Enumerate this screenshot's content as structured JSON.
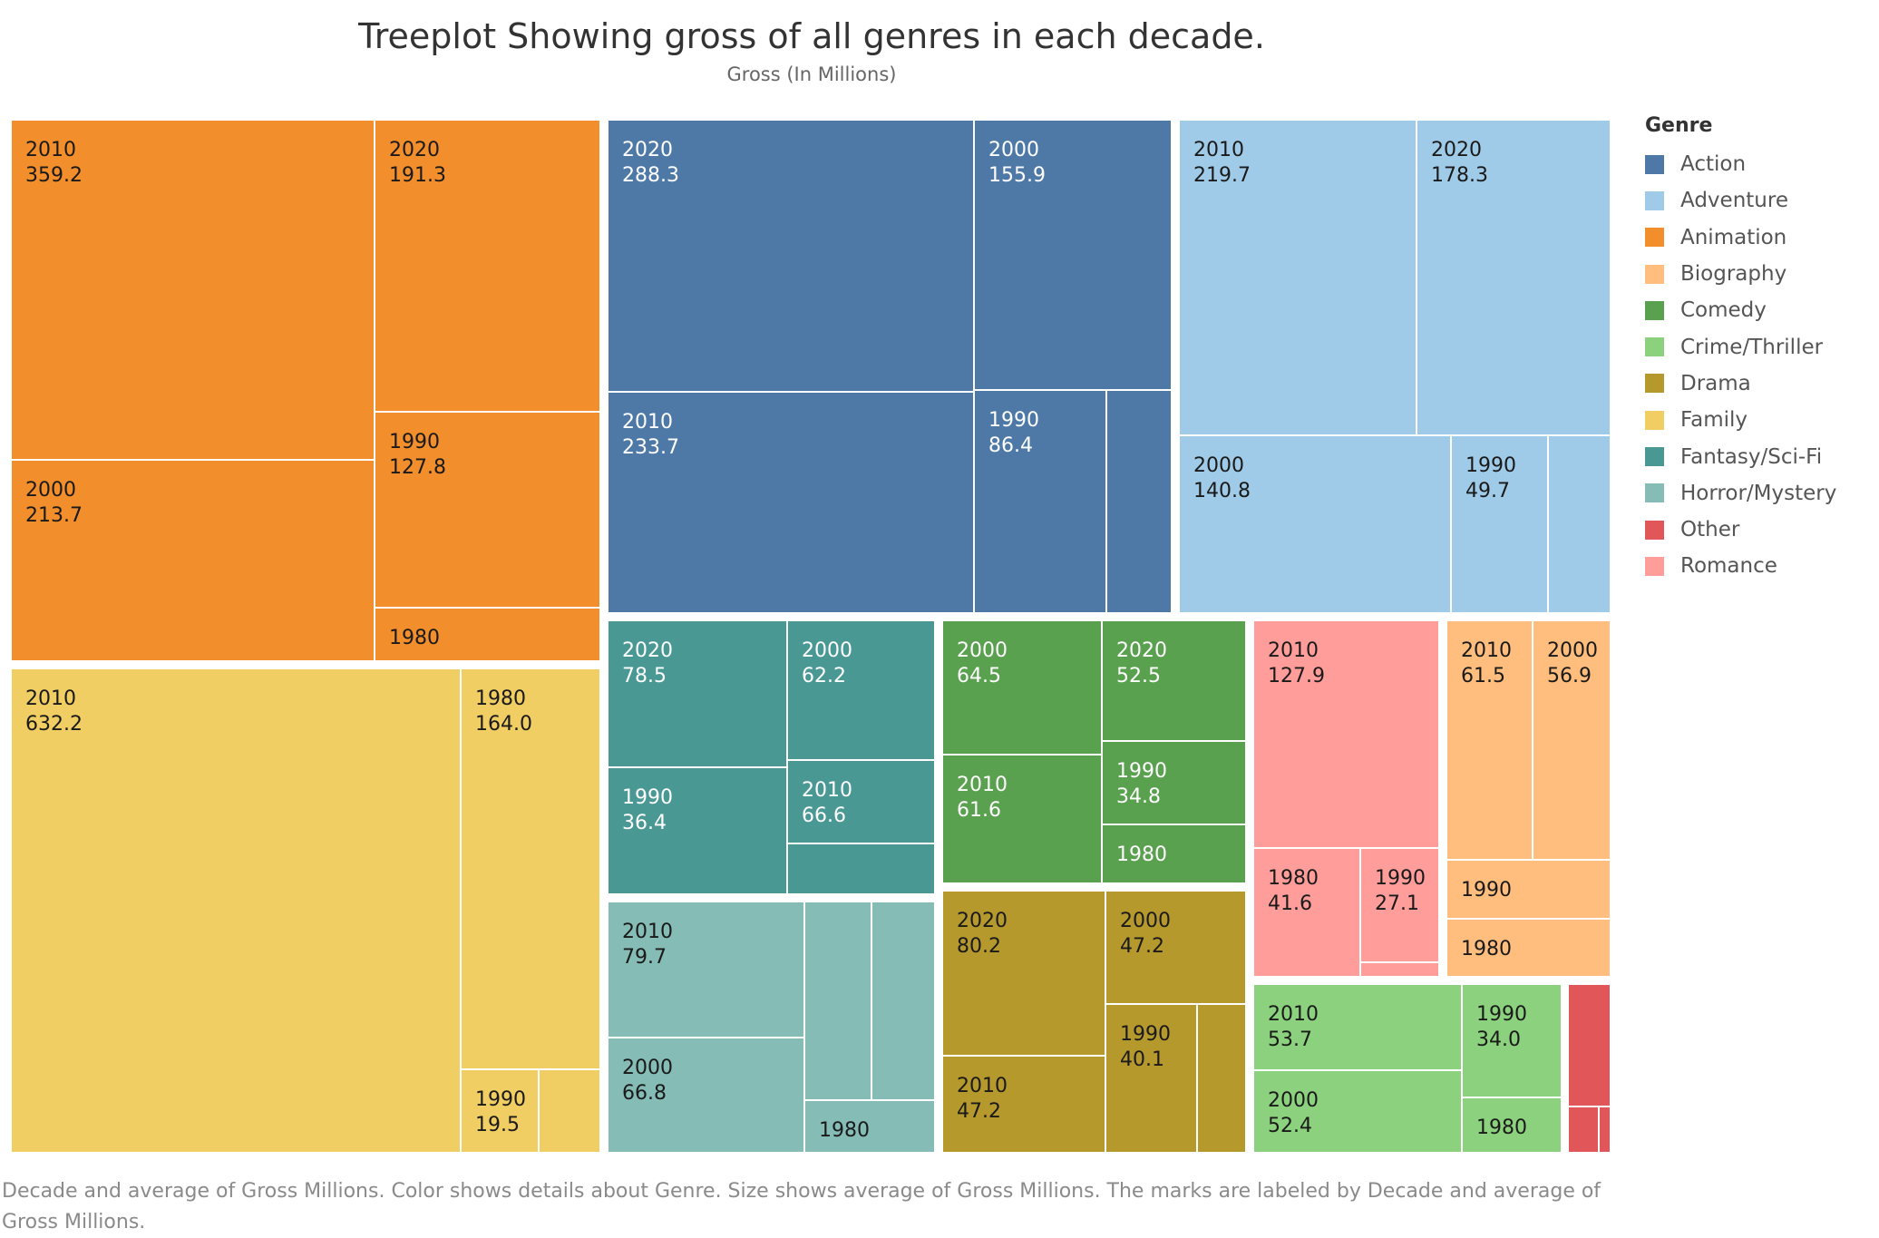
{
  "chart_data": {
    "type": "treemap",
    "title": "Treeplot Showing gross of all genres in each decade.",
    "subtitle": "Gross (In Millions)",
    "legend": {
      "title": "Genre",
      "items": [
        {
          "name": "Action",
          "color": "#4e79a7"
        },
        {
          "name": "Adventure",
          "color": "#a0cbe8"
        },
        {
          "name": "Animation",
          "color": "#f28e2b"
        },
        {
          "name": "Biography",
          "color": "#ffbe7d"
        },
        {
          "name": "Comedy",
          "color": "#59a14f"
        },
        {
          "name": "Crime/Thriller",
          "color": "#8cd17d"
        },
        {
          "name": "Drama",
          "color": "#b6992d"
        },
        {
          "name": "Family",
          "color": "#f1ce63"
        },
        {
          "name": "Fantasy/Sci-Fi",
          "color": "#499894"
        },
        {
          "name": "Horror/Mystery",
          "color": "#86bcb6"
        },
        {
          "name": "Other",
          "color": "#e15759"
        },
        {
          "name": "Romance",
          "color": "#ff9d9a"
        }
      ]
    },
    "genres": [
      {
        "genre": "Animation",
        "cells": [
          {
            "decade": "2010",
            "value": "359.2"
          },
          {
            "decade": "2020",
            "value": "191.3"
          },
          {
            "decade": "2000",
            "value": "213.7"
          },
          {
            "decade": "1990",
            "value": "127.8"
          },
          {
            "decade": "1980",
            "value": null
          }
        ]
      },
      {
        "genre": "Family",
        "cells": [
          {
            "decade": "2010",
            "value": "632.2"
          },
          {
            "decade": "1980",
            "value": "164.0"
          },
          {
            "decade": "1990",
            "value": "19.5"
          },
          {
            "decade": null,
            "value": null
          }
        ]
      },
      {
        "genre": "Action",
        "cells": [
          {
            "decade": "2020",
            "value": "288.3"
          },
          {
            "decade": "2000",
            "value": "155.9"
          },
          {
            "decade": "2010",
            "value": "233.7"
          },
          {
            "decade": "1990",
            "value": "86.4"
          },
          {
            "decade": null,
            "value": null
          }
        ]
      },
      {
        "genre": "Adventure",
        "cells": [
          {
            "decade": "2010",
            "value": "219.7"
          },
          {
            "decade": "2020",
            "value": "178.3"
          },
          {
            "decade": "2000",
            "value": "140.8"
          },
          {
            "decade": "1990",
            "value": "49.7"
          },
          {
            "decade": null,
            "value": null
          }
        ]
      },
      {
        "genre": "Fantasy/Sci-Fi",
        "cells": [
          {
            "decade": "2020",
            "value": "78.5"
          },
          {
            "decade": "2000",
            "value": "62.2"
          },
          {
            "decade": "2010",
            "value": "66.6"
          },
          {
            "decade": "1990",
            "value": "36.4"
          },
          {
            "decade": null,
            "value": null
          }
        ]
      },
      {
        "genre": "Horror/Mystery",
        "cells": [
          {
            "decade": "2010",
            "value": "79.7"
          },
          {
            "decade": "2000",
            "value": "66.8"
          },
          {
            "decade": null,
            "value": null
          },
          {
            "decade": null,
            "value": null
          },
          {
            "decade": "1980",
            "value": null
          }
        ]
      },
      {
        "genre": "Comedy",
        "cells": [
          {
            "decade": "2000",
            "value": "64.5"
          },
          {
            "decade": "2020",
            "value": "52.5"
          },
          {
            "decade": "2010",
            "value": "61.6"
          },
          {
            "decade": "1990",
            "value": "34.8"
          },
          {
            "decade": "1980",
            "value": null
          }
        ]
      },
      {
        "genre": "Drama",
        "cells": [
          {
            "decade": "2020",
            "value": "80.2"
          },
          {
            "decade": "2000",
            "value": "47.2"
          },
          {
            "decade": "2010",
            "value": "47.2"
          },
          {
            "decade": "1990",
            "value": "40.1"
          },
          {
            "decade": null,
            "value": null
          }
        ]
      },
      {
        "genre": "Romance",
        "cells": [
          {
            "decade": "2010",
            "value": "127.9"
          },
          {
            "decade": "1980",
            "value": "41.6"
          },
          {
            "decade": "1990",
            "value": "27.1"
          },
          {
            "decade": null,
            "value": null
          }
        ]
      },
      {
        "genre": "Biography",
        "cells": [
          {
            "decade": "2010",
            "value": "61.5"
          },
          {
            "decade": "2000",
            "value": "56.9"
          },
          {
            "decade": "1990",
            "value": null
          },
          {
            "decade": "1980",
            "value": null
          }
        ]
      },
      {
        "genre": "Crime/Thriller",
        "cells": [
          {
            "decade": "2010",
            "value": "53.7"
          },
          {
            "decade": "1990",
            "value": "34.0"
          },
          {
            "decade": "2000",
            "value": "52.4"
          },
          {
            "decade": "1980",
            "value": null
          }
        ]
      },
      {
        "genre": "Other",
        "cells": [
          {
            "decade": null,
            "value": null
          },
          {
            "decade": null,
            "value": null
          },
          {
            "decade": null,
            "value": null
          }
        ]
      }
    ]
  },
  "caption": "Decade and average of Gross Millions.  Color shows details about Genre.  Size shows average of Gross Millions.  The marks are labeled by Decade and average of Gross Millions."
}
